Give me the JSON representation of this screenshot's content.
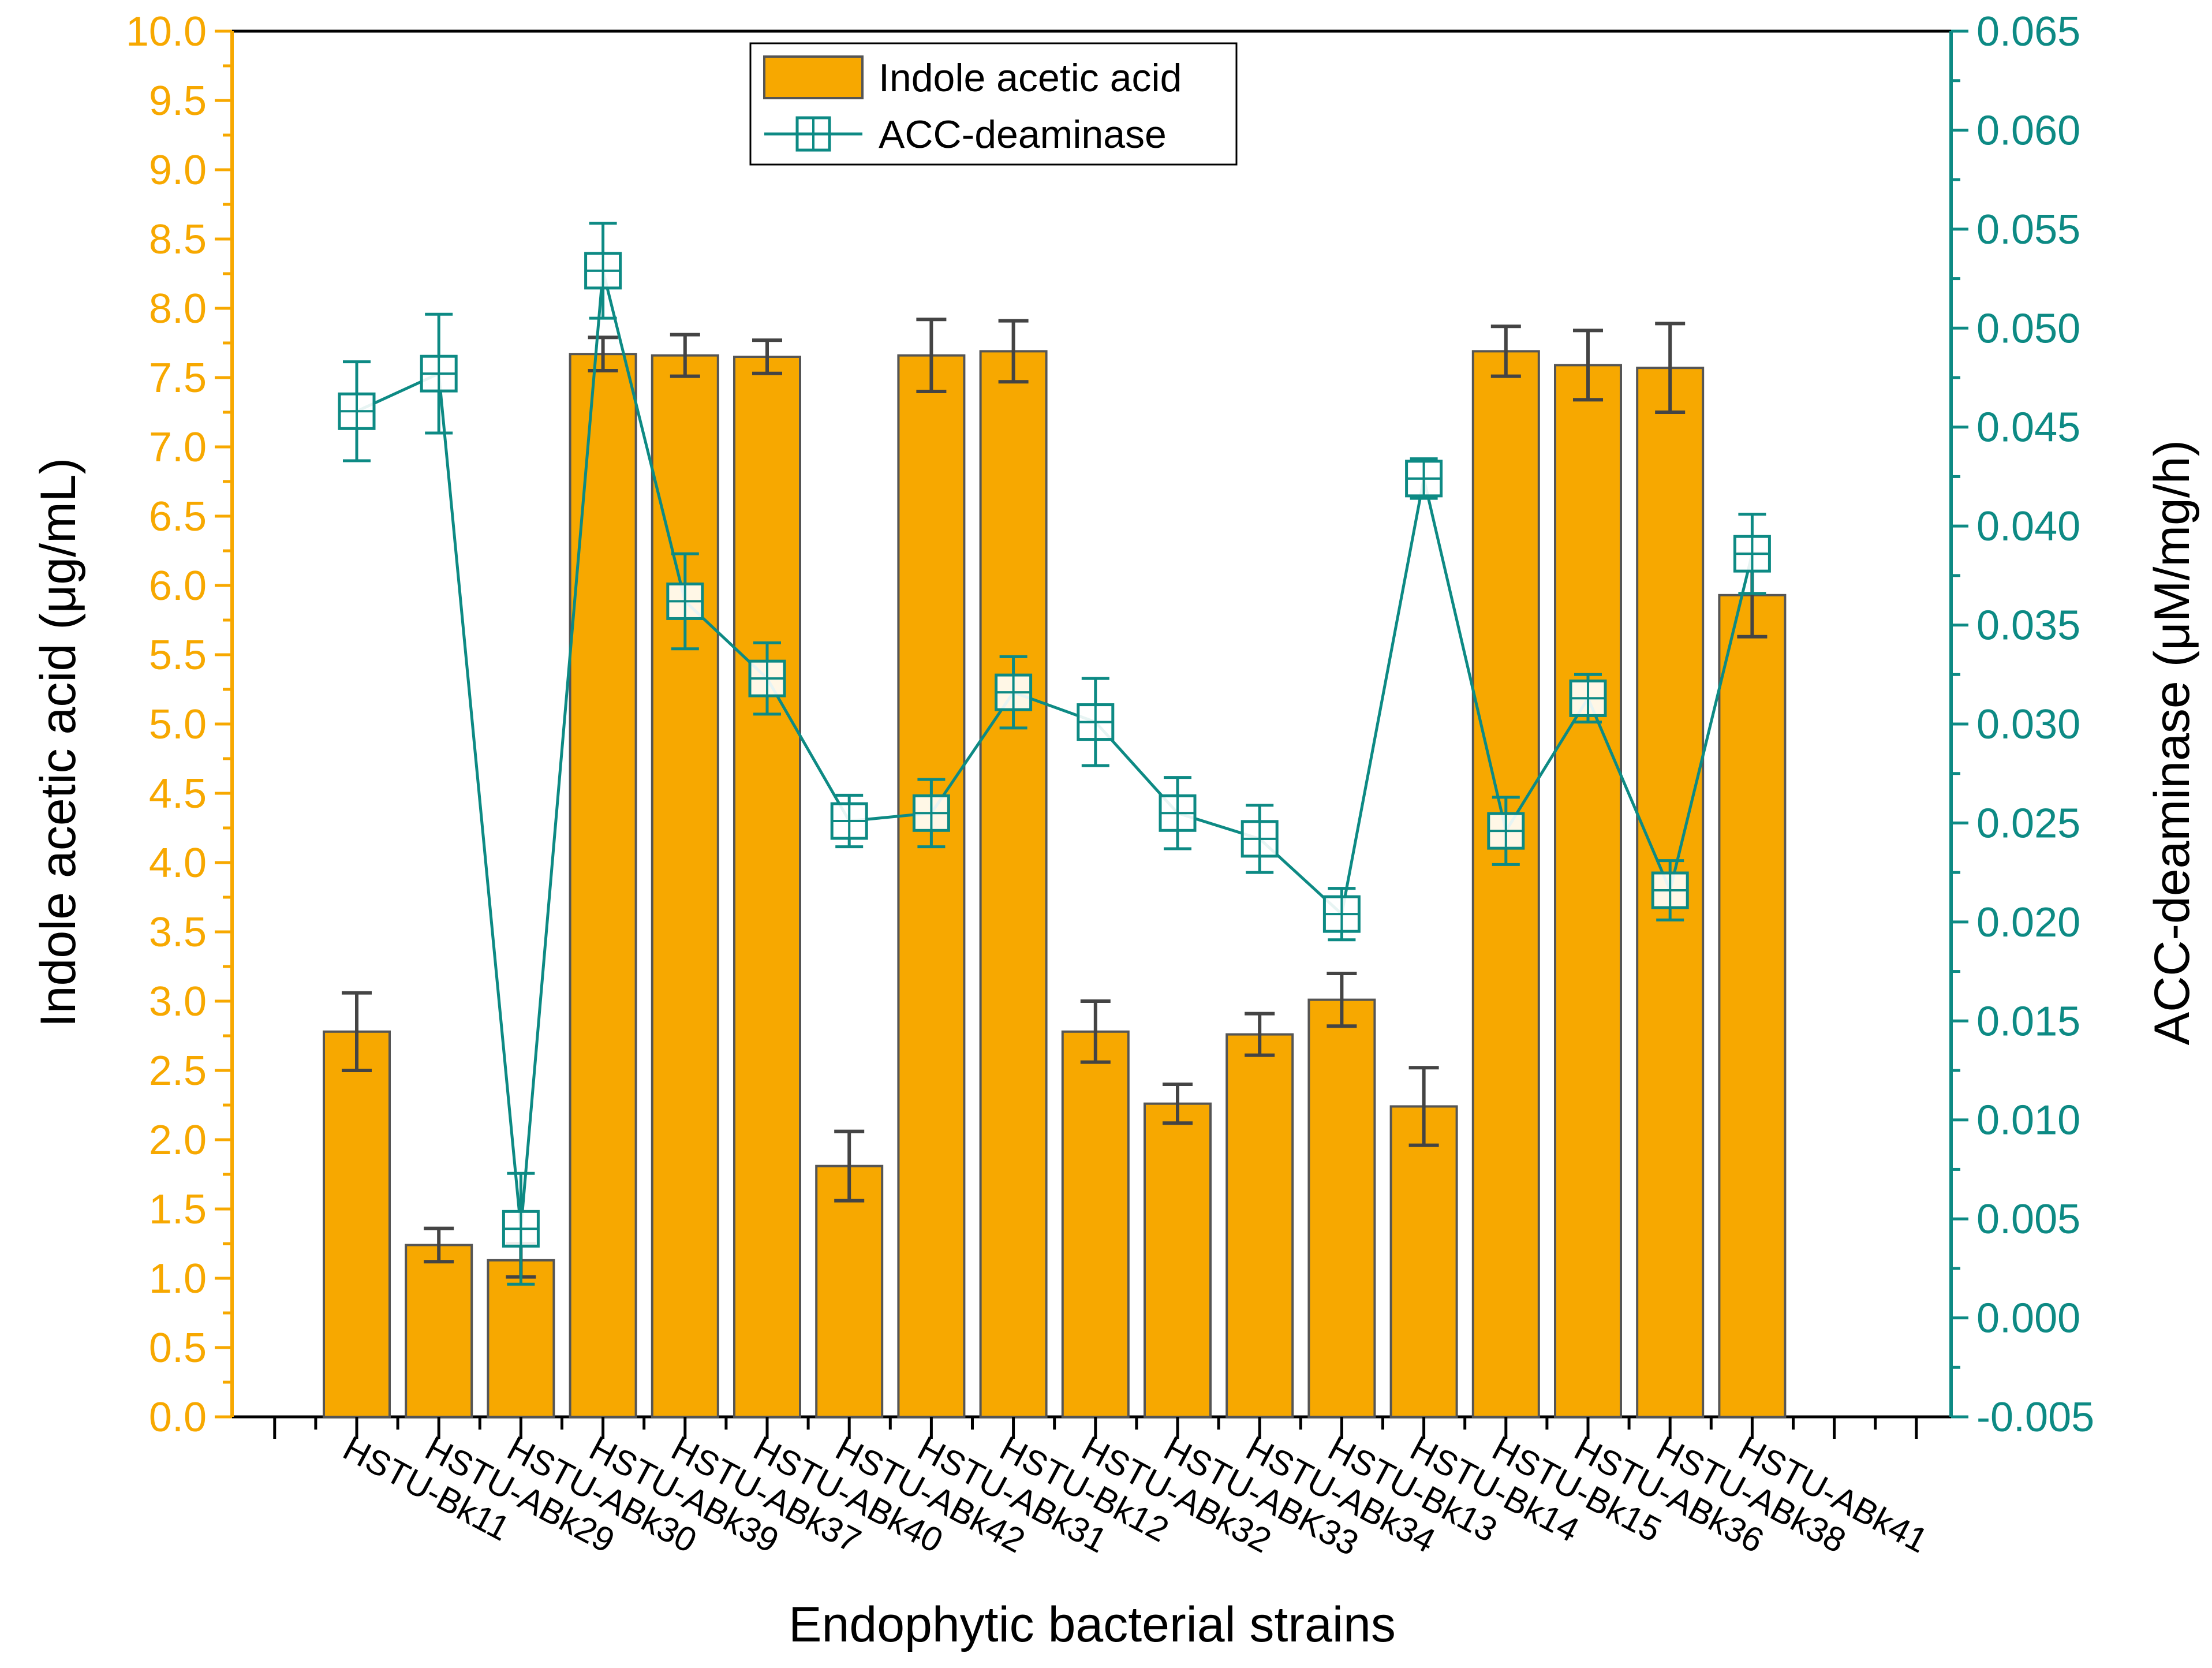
{
  "chart_data": {
    "type": "bar",
    "title": "",
    "xlabel": "Endophytic bacterial strains",
    "ylabel": "Indole acetic acid (μg/mL)",
    "y2label": "ACC-deaminase (μM/mg/h)",
    "ylim": [
      0,
      10
    ],
    "y2lim": [
      -0.005,
      0.065
    ],
    "grid": false,
    "legend_position": "top-center",
    "left_ticks": [
      "0.0",
      "0.5",
      "1.0",
      "1.5",
      "2.0",
      "2.5",
      "3.0",
      "3.5",
      "4.0",
      "4.5",
      "5.0",
      "5.5",
      "6.0",
      "6.5",
      "7.0",
      "7.5",
      "8.0",
      "8.5",
      "9.0",
      "9.5",
      "10.0"
    ],
    "right_ticks": [
      "-0.005",
      "0.000",
      "0.005",
      "0.010",
      "0.015",
      "0.020",
      "0.025",
      "0.030",
      "0.035",
      "0.040",
      "0.045",
      "0.050",
      "0.055",
      "0.060",
      "0.065"
    ],
    "categories": [
      "HSTU-Bk11",
      "HSTU-ABk29",
      "HSTU-ABk30",
      "HSTU-ABk39",
      "HSTU-ABk37",
      "HSTU-ABk40",
      "HSTU-ABk42",
      "HSTU-ABk31",
      "HSTU-Bk12",
      "HSTU-ABk32",
      "HSTU-ABK33",
      "HSTU-ABk34",
      "HSTU-Bk13",
      "HSTU-Bk14",
      "HSTU-Bk15",
      "HSTU-ABk36",
      "HSTU-ABk38",
      "HSTU-ABk41"
    ],
    "series": [
      {
        "name": "Indole acetic acid",
        "kind": "bar",
        "axis": "left",
        "values": [
          2.78,
          1.24,
          1.13,
          7.67,
          7.66,
          7.65,
          1.81,
          7.66,
          7.69,
          2.78,
          2.26,
          2.76,
          3.01,
          2.24,
          7.69,
          7.59,
          7.57,
          5.93
        ],
        "errors": [
          0.28,
          0.12,
          0.12,
          0.12,
          0.15,
          0.12,
          0.25,
          0.26,
          0.22,
          0.22,
          0.14,
          0.15,
          0.19,
          0.28,
          0.18,
          0.25,
          0.32,
          0.3
        ]
      },
      {
        "name": "ACC-deaminase",
        "kind": "line",
        "axis": "right",
        "values": [
          0.0458,
          0.0477,
          0.0045,
          0.0529,
          0.0362,
          0.0323,
          0.0251,
          0.0255,
          0.0316,
          0.0301,
          0.0255,
          0.0242,
          0.0204,
          0.0424,
          0.0246,
          0.0313,
          0.0216,
          0.0386
        ],
        "errors": [
          0.0025,
          0.003,
          0.0028,
          0.0024,
          0.0024,
          0.0018,
          0.0013,
          0.0017,
          0.0018,
          0.0022,
          0.0018,
          0.0017,
          0.0013,
          0.001,
          0.0017,
          0.0012,
          0.0015,
          0.002
        ]
      }
    ],
    "colors": {
      "bar_fill": "#F7A800",
      "bar_edge": "#555555",
      "error_bar": "#444444",
      "line": "#0D8A84",
      "left_axis": "#F7A800",
      "right_axis": "#0D8A84",
      "frame": "#000000"
    }
  }
}
